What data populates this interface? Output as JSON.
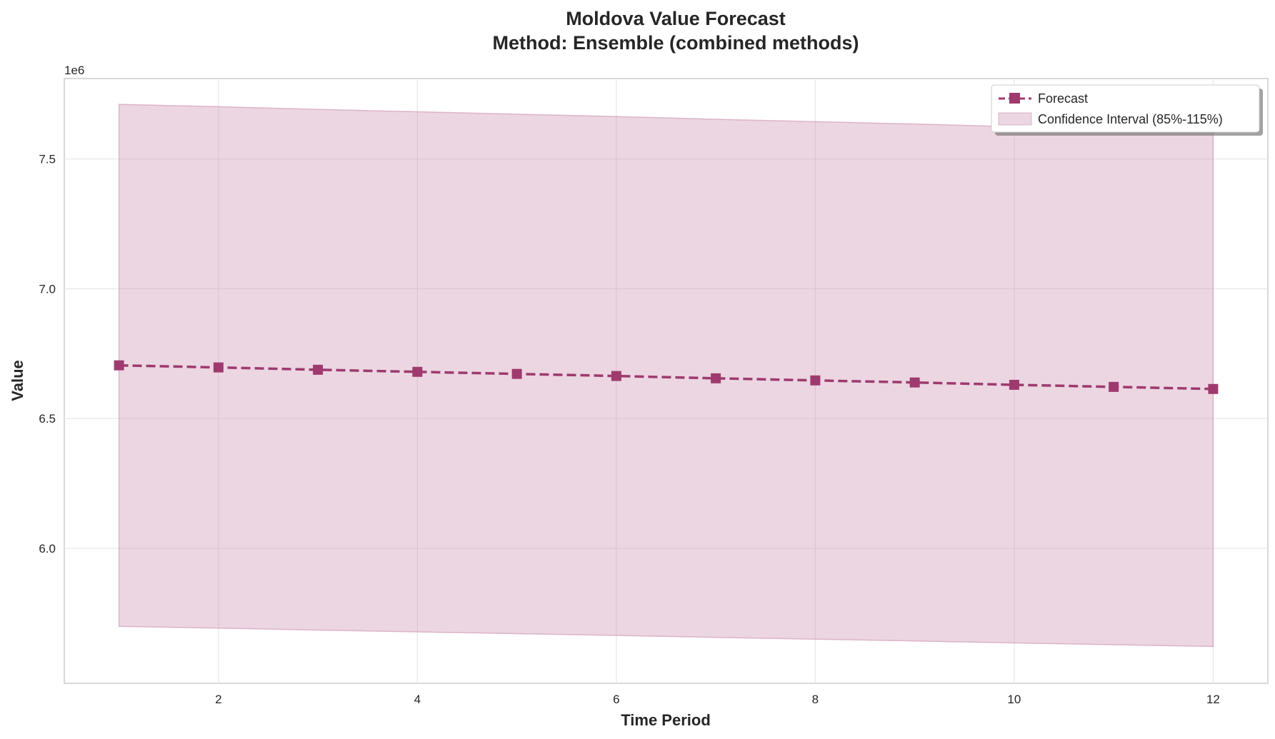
{
  "chart_data": {
    "type": "line",
    "title": "Moldova Value Forecast",
    "subtitle": "Method: Ensemble (combined methods)",
    "xlabel": "Time Period",
    "ylabel": "Value",
    "y_offset_label": "1e6",
    "xlim": [
      0.45,
      12.55
    ],
    "ylim": [
      5.48,
      7.81
    ],
    "y_scale_factor": 1000000,
    "xticks": [
      2,
      4,
      6,
      8,
      10,
      12
    ],
    "xtick_labels": [
      "2",
      "4",
      "6",
      "8",
      "10",
      "12"
    ],
    "yticks": [
      6.0,
      6.5,
      7.0,
      7.5
    ],
    "ytick_labels": [
      "6.0",
      "6.5",
      "7.0",
      "7.5"
    ],
    "grid": true,
    "legend_position": "top-right",
    "x": [
      1,
      2,
      3,
      4,
      5,
      6,
      7,
      8,
      9,
      10,
      11,
      12
    ],
    "series": [
      {
        "name": "Forecast",
        "style": "dashed line with square markers",
        "color": "#9e3a6e",
        "values": [
          6.705,
          6.697,
          6.688,
          6.68,
          6.672,
          6.664,
          6.655,
          6.647,
          6.639,
          6.63,
          6.622,
          6.614
        ]
      }
    ],
    "band": {
      "name": "Confidence Interval (85%-115%)",
      "color": "#c98aac",
      "lower_factor": 0.85,
      "upper_factor": 1.15
    }
  }
}
